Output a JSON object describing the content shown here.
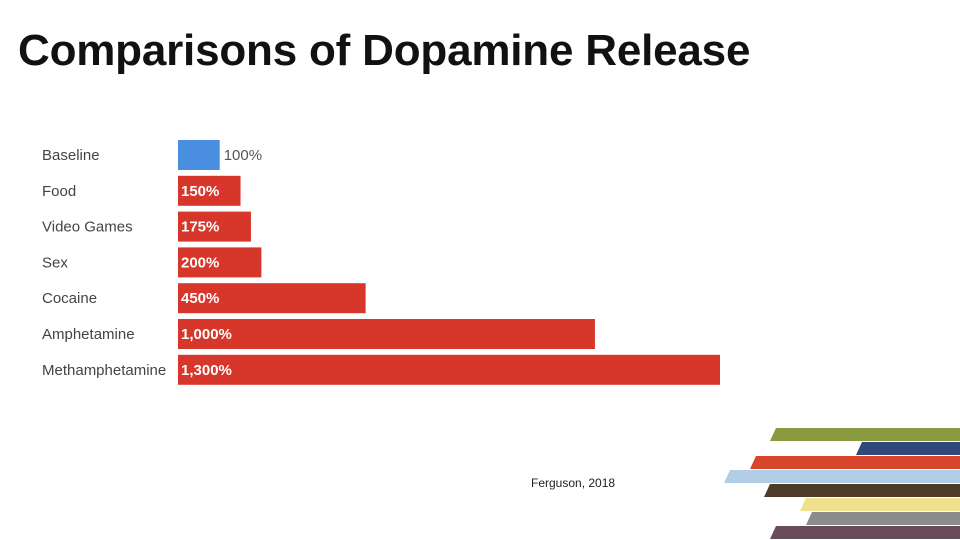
{
  "slide": {
    "title": "Comparisons of Dopamine Release",
    "source": "Ferguson, 2018"
  },
  "colors": {
    "baseline_bar": "#4a8fdf",
    "bar": "#d7362b",
    "baseline_label": "#555555",
    "bar_label": "#ffffff",
    "category_label": "#444444"
  },
  "chart_data": {
    "type": "bar",
    "orientation": "horizontal",
    "title": "",
    "xlabel": "",
    "ylabel": "",
    "grid": false,
    "categories": [
      "Baseline",
      "Food",
      "Video Games",
      "Sex",
      "Cocaine",
      "Amphetamine",
      "Methamphetamine"
    ],
    "values": [
      100,
      150,
      175,
      200,
      450,
      1000,
      1300
    ],
    "value_labels": [
      "100%",
      "150%",
      "175%",
      "200%",
      "450%",
      "1,000%",
      "1,300%"
    ],
    "xlim": [
      0,
      1300
    ]
  },
  "decoration": {
    "stripe_colors": [
      "#8a9a3e",
      "#2f4a7a",
      "#d7452c",
      "#b2cde6",
      "#4f3b2a",
      "#efe08e",
      "#8c8c8c",
      "#6b4a5a"
    ]
  }
}
